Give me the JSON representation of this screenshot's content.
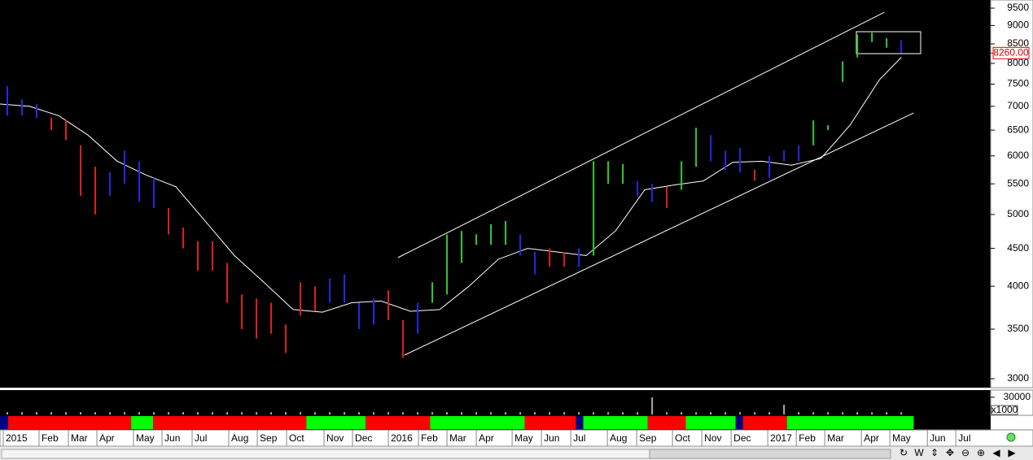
{
  "chart_data": {
    "type": "ohlc",
    "ylog": true,
    "ylim": [
      2925,
      9743
    ],
    "yticks": [
      3000,
      3500,
      4000,
      4500,
      5000,
      5500,
      6000,
      6500,
      7000,
      7500,
      8000,
      8500,
      9000,
      9500
    ],
    "xlim": [
      0,
      135.2
    ],
    "xticks": [
      {
        "value": 0.44,
        "label": "2015"
      },
      {
        "value": 5.33,
        "label": "Feb"
      },
      {
        "value": 9.33,
        "label": "Mar"
      },
      {
        "value": 13.22,
        "label": "Apr"
      },
      {
        "value": 18.22,
        "label": "May"
      },
      {
        "value": 22.11,
        "label": "Jun"
      },
      {
        "value": 26.22,
        "label": "Jul"
      },
      {
        "value": 31.22,
        "label": "Aug"
      },
      {
        "value": 35.11,
        "label": "Sep"
      },
      {
        "value": 39.11,
        "label": "Oct"
      },
      {
        "value": 44.22,
        "label": "Nov"
      },
      {
        "value": 48.11,
        "label": "Dec"
      },
      {
        "value": 53,
        "label": "2016"
      },
      {
        "value": 57.11,
        "label": "Feb"
      },
      {
        "value": 61,
        "label": "Mar"
      },
      {
        "value": 65,
        "label": "Apr"
      },
      {
        "value": 69.89,
        "label": "May"
      },
      {
        "value": 73.89,
        "label": "Jun"
      },
      {
        "value": 77.89,
        "label": "Jul"
      },
      {
        "value": 82.89,
        "label": "Aug"
      },
      {
        "value": 86.89,
        "label": "Sep"
      },
      {
        "value": 91.78,
        "label": "Oct"
      },
      {
        "value": 95.78,
        "label": "Nov"
      },
      {
        "value": 99.78,
        "label": "Dec"
      },
      {
        "value": 104.78,
        "label": "2017"
      },
      {
        "value": 108.67,
        "label": "Feb"
      },
      {
        "value": 112.56,
        "label": "Mar"
      },
      {
        "value": 117.56,
        "label": "Apr"
      },
      {
        "value": 121.44,
        "label": "May"
      },
      {
        "value": 126.56,
        "label": "Jun"
      },
      {
        "value": 130.44,
        "label": "Jul"
      }
    ],
    "x": [
      1,
      3,
      5,
      7,
      9,
      11,
      13,
      15,
      17,
      19,
      21,
      23,
      25,
      27,
      29,
      31,
      33,
      35,
      37,
      39,
      41,
      43,
      45,
      47,
      49,
      51,
      53,
      55,
      57,
      59,
      61,
      63,
      65,
      67,
      69,
      71,
      73,
      75,
      77,
      79,
      81,
      83,
      85,
      87,
      89,
      91,
      93,
      95,
      97,
      99,
      101,
      103,
      105,
      107,
      109,
      111,
      113,
      115,
      117,
      119,
      121,
      123
    ],
    "high": [
      7450,
      7150,
      7050,
      6750,
      6700,
      6200,
      5800,
      5700,
      6100,
      5900,
      5600,
      5100,
      4800,
      4600,
      4600,
      4300,
      3900,
      3850,
      3800,
      3550,
      4050,
      4000,
      4100,
      4150,
      3800,
      3850,
      3950,
      3600,
      3800,
      4050,
      4700,
      4750,
      4700,
      4850,
      4900,
      4700,
      4450,
      4500,
      4450,
      4500,
      5900,
      5900,
      5850,
      5550,
      5500,
      5450,
      5900,
      6550,
      6400,
      6100,
      6150,
      5750,
      6000,
      6100,
      6200,
      6700,
      6600,
      8050,
      8750,
      8800,
      8650,
      8600
    ],
    "low": [
      6800,
      6800,
      6750,
      6500,
      6300,
      5300,
      5000,
      5300,
      5500,
      5200,
      5100,
      4700,
      4500,
      4200,
      4200,
      3800,
      3500,
      3400,
      3450,
      3250,
      3650,
      3700,
      3800,
      3800,
      3500,
      3550,
      3600,
      3200,
      3450,
      3800,
      3900,
      4300,
      4550,
      4550,
      4550,
      4400,
      4150,
      4250,
      4250,
      4250,
      4400,
      5500,
      5500,
      5300,
      5200,
      5100,
      5400,
      5800,
      5900,
      5750,
      5700,
      5550,
      5600,
      5900,
      5900,
      6200,
      6500,
      7550,
      8150,
      8550,
      8400,
      8260
    ],
    "bar_colors": [
      "#2828e8",
      "#2828e8",
      "#2828e8",
      "#e02020",
      "#e02020",
      "#e02020",
      "#e02020",
      "#2828e8",
      "#2828e8",
      "#2828e8",
      "#2828e8",
      "#e02020",
      "#e02020",
      "#e02020",
      "#e02020",
      "#e02020",
      "#e02020",
      "#e02020",
      "#e02020",
      "#e02020",
      "#e02020",
      "#e02020",
      "#2828e8",
      "#2828e8",
      "#2828e8",
      "#2828e8",
      "#e02020",
      "#e02020",
      "#2828e8",
      "#33cc33",
      "#33cc33",
      "#33cc33",
      "#33cc33",
      "#33cc33",
      "#33cc33",
      "#2828e8",
      "#2828e8",
      "#e02020",
      "#e02020",
      "#2828e8",
      "#33cc33",
      "#33cc33",
      "#33cc33",
      "#2828e8",
      "#2828e8",
      "#e02020",
      "#33cc33",
      "#33cc33",
      "#2828e8",
      "#2828e8",
      "#2828e8",
      "#e02020",
      "#2828e8",
      "#2828e8",
      "#2828e8",
      "#33cc33",
      "#33cc33",
      "#33cc33",
      "#33cc33",
      "#33cc33",
      "#33cc33",
      "#2828e8"
    ],
    "last_value": 8260,
    "last_value_label": "8260.00",
    "average": {
      "color": "#ffffff",
      "x": [
        0,
        4,
        8,
        12,
        16,
        20,
        24,
        28,
        32,
        36,
        40,
        44,
        48,
        52,
        56,
        60,
        64,
        68,
        72,
        76,
        80,
        84,
        88,
        92,
        96,
        100,
        104,
        108,
        112,
        116,
        120,
        123
      ],
      "values": [
        7050,
        7000,
        6800,
        6400,
        5900,
        5650,
        5450,
        4900,
        4400,
        4050,
        3720,
        3690,
        3800,
        3820,
        3700,
        3720,
        4000,
        4350,
        4500,
        4450,
        4400,
        4750,
        5400,
        5480,
        5550,
        5880,
        5900,
        5830,
        5950,
        6600,
        7600,
        8150
      ]
    },
    "channel": [
      {
        "x": [
          54.3,
          120.7
        ],
        "values": [
          4372,
          9379
        ]
      },
      {
        "x": [
          55.2,
          124.7
        ],
        "values": [
          3228,
          6858
        ]
      }
    ],
    "volume": {
      "ylim": [
        0,
        41000
      ],
      "yticks": [
        30000
      ],
      "unit_label": "x1000",
      "color": "#aaaaaa",
      "values": [
        4000,
        4000,
        4000,
        4000,
        4000,
        4000,
        4000,
        4000,
        4000,
        4000,
        4000,
        4000,
        4000,
        4000,
        4000,
        4000,
        4000,
        4000,
        4000,
        4000,
        4000,
        4000,
        4000,
        4000,
        4000,
        4000,
        4000,
        4000,
        4000,
        4000,
        4000,
        4000,
        4000,
        4000,
        4000,
        4000,
        4000,
        4000,
        4000,
        4000,
        4000,
        4000,
        4000,
        4000,
        30000,
        4000,
        4000,
        4000,
        4000,
        4000,
        4000,
        4000,
        4000,
        17000,
        4000,
        4000,
        4000,
        4000,
        4000,
        4000,
        4000,
        4000
      ]
    },
    "trend_strip": {
      "ends": [
        1.1,
        17.9,
        20.9,
        41.8,
        49.9,
        58.7,
        71.6,
        78.6,
        79.6,
        88.4,
        93.6,
        100.4,
        101.4,
        107.4,
        124.7
      ],
      "colors": [
        "#000080",
        "#ff0000",
        "#00ff00",
        "#ff0000",
        "#00ff00",
        "#ff0000",
        "#00ff00",
        "#ff0000",
        "#000080",
        "#00ff00",
        "#ff0000",
        "#00ff00",
        "#000080",
        "#ff0000",
        "#00ff00"
      ]
    },
    "toolbar": [
      "↻",
      "W",
      "⇕",
      "✥",
      "⊖",
      "⊕",
      "◀",
      "▶"
    ]
  }
}
